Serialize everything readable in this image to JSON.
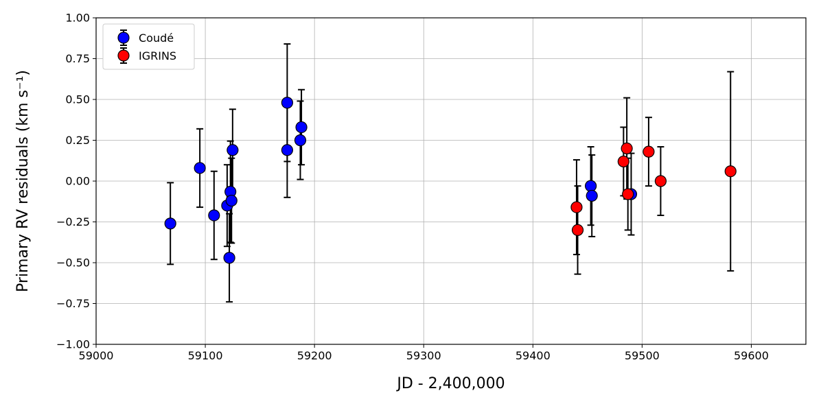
{
  "chart_data": {
    "type": "scatter",
    "title": "",
    "xlabel": "JD - 2,400,000",
    "ylabel": "Primary RV residuals (km s⁻¹)",
    "xlim": [
      59000,
      59650
    ],
    "ylim": [
      -1.0,
      1.0
    ],
    "xticks": [
      59000,
      59100,
      59200,
      59300,
      59400,
      59500,
      59600
    ],
    "xtick_labels": [
      "59000",
      "59100",
      "59200",
      "59300",
      "59400",
      "59500",
      "59600"
    ],
    "yticks": [
      -1.0,
      -0.75,
      -0.5,
      -0.25,
      0.0,
      0.25,
      0.5,
      0.75,
      1.0
    ],
    "ytick_labels": [
      "−1.00",
      "−0.75",
      "−0.50",
      "−0.25",
      "0.00",
      "0.25",
      "0.50",
      "0.75",
      "1.00"
    ],
    "grid": true,
    "legend_position": "top-left",
    "series": [
      {
        "name": "Coudé",
        "color": "#0000ff",
        "points": [
          {
            "x": 59068,
            "y": -0.26,
            "err": 0.25
          },
          {
            "x": 59095,
            "y": 0.08,
            "err": 0.24
          },
          {
            "x": 59108,
            "y": -0.21,
            "err": 0.27
          },
          {
            "x": 59120,
            "y": -0.15,
            "err": 0.25
          },
          {
            "x": 59122,
            "y": -0.47,
            "err": 0.27
          },
          {
            "x": 59123,
            "y": -0.065,
            "err": 0.31
          },
          {
            "x": 59124,
            "y": -0.12,
            "err": 0.26
          },
          {
            "x": 59125,
            "y": 0.19,
            "err": 0.25
          },
          {
            "x": 59175,
            "y": 0.48,
            "err": 0.36
          },
          {
            "x": 59175,
            "y": 0.19,
            "err": 0.29
          },
          {
            "x": 59187,
            "y": 0.25,
            "err": 0.24
          },
          {
            "x": 59188,
            "y": 0.33,
            "err": 0.23
          },
          {
            "x": 59453,
            "y": -0.03,
            "err": 0.24
          },
          {
            "x": 59454,
            "y": -0.09,
            "err": 0.25
          },
          {
            "x": 59490,
            "y": -0.08,
            "err": 0.25
          }
        ]
      },
      {
        "name": "IGRINS",
        "color": "#ff0000",
        "points": [
          {
            "x": 59440,
            "y": -0.16,
            "err": 0.29
          },
          {
            "x": 59441,
            "y": -0.3,
            "err": 0.27
          },
          {
            "x": 59483,
            "y": 0.12,
            "err": 0.21
          },
          {
            "x": 59486,
            "y": 0.2,
            "err": 0.31
          },
          {
            "x": 59487,
            "y": -0.08,
            "err": 0.22
          },
          {
            "x": 59506,
            "y": 0.18,
            "err": 0.21
          },
          {
            "x": 59517,
            "y": 0.0,
            "err": 0.21
          },
          {
            "x": 59581,
            "y": 0.06,
            "err": 0.61
          }
        ]
      }
    ]
  }
}
